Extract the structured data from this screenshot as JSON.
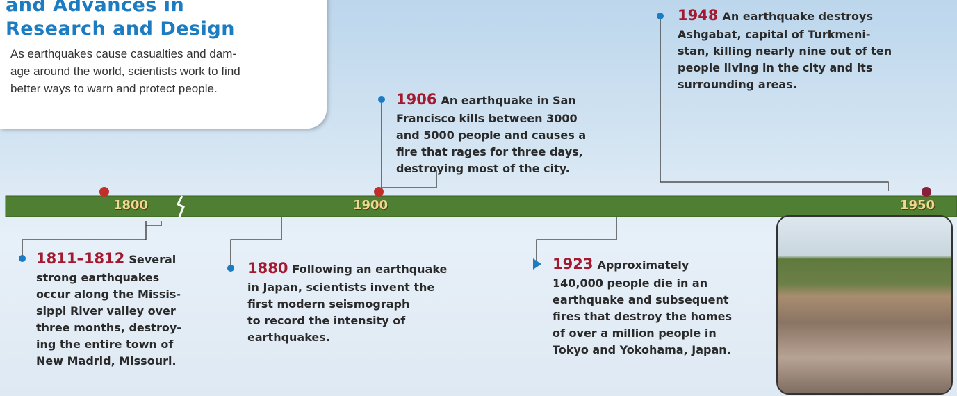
{
  "header": {
    "title_lines": [
      "and Advances in",
      "Research and Design"
    ],
    "intro_lines": [
      "As earthquakes cause casualties and dam-",
      "age around the world, scientists work to find",
      "better ways to warn and protect people."
    ]
  },
  "timeline": {
    "labels": [
      "1800",
      "1900",
      "1950"
    ]
  },
  "events": [
    {
      "year": "1906",
      "lines": [
        "An earthquake in San",
        "Francisco kills between 3000",
        "and 5000 people and causes a",
        "fire that rages for three days,",
        "destroying most of the city."
      ]
    },
    {
      "year": "1948",
      "lines": [
        "An earthquake destroys",
        "Ashgabat, capital of Turkmeni-",
        "stan, killing nearly nine out of ten",
        "people living in the city and its",
        "surrounding areas."
      ]
    },
    {
      "year": "1811–1812",
      "lines": [
        "Several",
        "strong earthquakes",
        "occur along the Missis-",
        "sippi River valley over",
        "three months, destroy-",
        "ing the entire town of",
        "New Madrid, Missouri."
      ]
    },
    {
      "year": "1880",
      "lines": [
        "Following an earthquake",
        "in Japan, scientists invent the",
        "first modern seismograph",
        "to record the intensity of",
        "earthquakes."
      ]
    },
    {
      "year": "1923",
      "lines": [
        "Approximately",
        "140,000 people die in an",
        "earthquake and subsequent",
        "fires that destroy the homes",
        "of over a million people in",
        "Tokyo and Yokohama, Japan."
      ]
    }
  ]
}
